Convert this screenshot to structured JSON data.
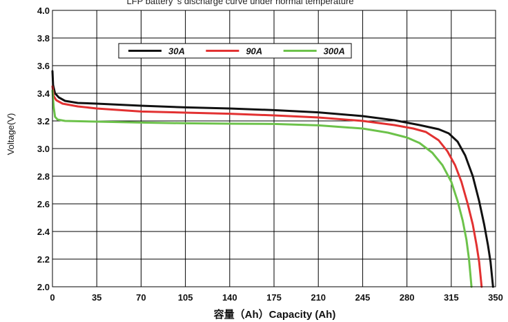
{
  "chart_data": {
    "type": "line",
    "title": "LFP battery ’s discharge curve under normal temperature",
    "xlabel": "容量（Ah）Capacity (Ah)",
    "ylabel": "Voltage(V)",
    "xlim": [
      0,
      350
    ],
    "ylim": [
      2.0,
      4.0
    ],
    "x_ticks": [
      0,
      35,
      70,
      105,
      140,
      175,
      210,
      245,
      280,
      315,
      350
    ],
    "x_tick_labels": [
      "0",
      "35",
      "70",
      "105",
      "140",
      "175",
      "210",
      "245",
      "280",
      "315",
      "350"
    ],
    "y_ticks": [
      2.0,
      2.2,
      2.4,
      2.6,
      2.8,
      3.0,
      3.2,
      3.4,
      3.6,
      3.8,
      4.0
    ],
    "y_tick_labels": [
      "2.0",
      "2.2",
      "2.4",
      "2.6",
      "2.8",
      "3.0",
      "3.2",
      "3.4",
      "3.6",
      "3.8",
      "4.0"
    ],
    "grid": true,
    "legend_position": "top-left",
    "series": [
      {
        "name": "30A",
        "color": "#111111",
        "points": [
          [
            0,
            3.56
          ],
          [
            0.5,
            3.46
          ],
          [
            2,
            3.4
          ],
          [
            5,
            3.37
          ],
          [
            10,
            3.345
          ],
          [
            20,
            3.33
          ],
          [
            35,
            3.325
          ],
          [
            70,
            3.31
          ],
          [
            105,
            3.298
          ],
          [
            140,
            3.29
          ],
          [
            175,
            3.278
          ],
          [
            210,
            3.262
          ],
          [
            245,
            3.235
          ],
          [
            270,
            3.205
          ],
          [
            290,
            3.17
          ],
          [
            305,
            3.14
          ],
          [
            313,
            3.11
          ],
          [
            320,
            3.05
          ],
          [
            326,
            2.95
          ],
          [
            332,
            2.8
          ],
          [
            337,
            2.62
          ],
          [
            341,
            2.45
          ],
          [
            344,
            2.3
          ],
          [
            346,
            2.18
          ],
          [
            348,
            2.0
          ]
        ]
      },
      {
        "name": "90A",
        "color": "#e23131",
        "points": [
          [
            0,
            3.45
          ],
          [
            1,
            3.38
          ],
          [
            3,
            3.35
          ],
          [
            8,
            3.325
          ],
          [
            20,
            3.305
          ],
          [
            35,
            3.29
          ],
          [
            70,
            3.268
          ],
          [
            105,
            3.26
          ],
          [
            140,
            3.252
          ],
          [
            175,
            3.24
          ],
          [
            210,
            3.225
          ],
          [
            245,
            3.2
          ],
          [
            270,
            3.17
          ],
          [
            285,
            3.145
          ],
          [
            295,
            3.12
          ],
          [
            305,
            3.06
          ],
          [
            312,
            2.98
          ],
          [
            318,
            2.88
          ],
          [
            323,
            2.76
          ],
          [
            328,
            2.6
          ],
          [
            332,
            2.45
          ],
          [
            335,
            2.3
          ],
          [
            337,
            2.18
          ],
          [
            339,
            2.0
          ]
        ]
      },
      {
        "name": "300A",
        "color": "#6cc24a",
        "points": [
          [
            0,
            3.42
          ],
          [
            1,
            3.3
          ],
          [
            2,
            3.23
          ],
          [
            4,
            3.21
          ],
          [
            10,
            3.2
          ],
          [
            35,
            3.195
          ],
          [
            70,
            3.188
          ],
          [
            105,
            3.183
          ],
          [
            140,
            3.18
          ],
          [
            175,
            3.178
          ],
          [
            210,
            3.168
          ],
          [
            245,
            3.145
          ],
          [
            265,
            3.115
          ],
          [
            280,
            3.08
          ],
          [
            290,
            3.04
          ],
          [
            300,
            2.97
          ],
          [
            308,
            2.88
          ],
          [
            315,
            2.76
          ],
          [
            320,
            2.62
          ],
          [
            324,
            2.48
          ],
          [
            327,
            2.34
          ],
          [
            329,
            2.2
          ],
          [
            331,
            2.0
          ]
        ]
      }
    ]
  }
}
